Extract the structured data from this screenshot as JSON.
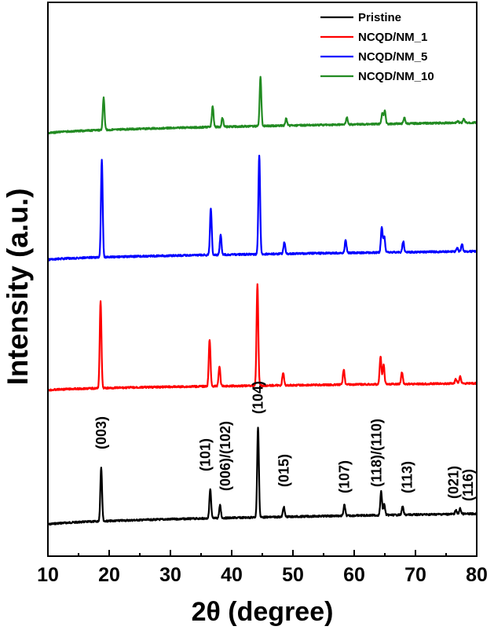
{
  "chart_data": {
    "type": "line",
    "title": "",
    "xlabel": "2θ (degree)",
    "ylabel": "Intensity (a.u.)",
    "xlim": [
      10,
      80
    ],
    "x_ticks": [
      10,
      20,
      30,
      40,
      50,
      60,
      70,
      80
    ],
    "y_ticks_shown": false,
    "legend_position": "top-right",
    "series": [
      {
        "name": "Pristine",
        "color": "#000000",
        "offset": 0,
        "peaks": [
          [
            18.7,
            0.6
          ],
          [
            36.5,
            0.32
          ],
          [
            38.1,
            0.14
          ],
          [
            44.3,
            1.0
          ],
          [
            48.5,
            0.11
          ],
          [
            58.4,
            0.12
          ],
          [
            64.4,
            0.26
          ],
          [
            64.9,
            0.12
          ],
          [
            67.9,
            0.09
          ],
          [
            76.6,
            0.04
          ],
          [
            77.3,
            0.06
          ]
        ]
      },
      {
        "name": "NCQD/NM_1",
        "color": "#ff0000",
        "offset": 1,
        "peaks": [
          [
            18.6,
            0.96
          ],
          [
            36.4,
            0.52
          ],
          [
            38.0,
            0.22
          ],
          [
            44.2,
            1.12
          ],
          [
            48.4,
            0.14
          ],
          [
            58.3,
            0.17
          ],
          [
            64.3,
            0.31
          ],
          [
            64.8,
            0.22
          ],
          [
            67.8,
            0.13
          ],
          [
            76.6,
            0.05
          ],
          [
            77.3,
            0.08
          ]
        ]
      },
      {
        "name": "NCQD/NM_5",
        "color": "#0000ff",
        "offset": 2,
        "peaks": [
          [
            18.8,
            1.08
          ],
          [
            36.6,
            0.52
          ],
          [
            38.2,
            0.22
          ],
          [
            44.5,
            1.1
          ],
          [
            48.6,
            0.13
          ],
          [
            58.6,
            0.14
          ],
          [
            64.5,
            0.28
          ],
          [
            64.9,
            0.18
          ],
          [
            68.0,
            0.12
          ],
          [
            76.8,
            0.04
          ],
          [
            77.6,
            0.08
          ]
        ]
      },
      {
        "name": "NCQD/NM_10",
        "color": "#228b22",
        "offset": 3,
        "peaks": [
          [
            19.1,
            0.36
          ],
          [
            36.9,
            0.23
          ],
          [
            38.5,
            0.1
          ],
          [
            44.7,
            0.54
          ],
          [
            48.9,
            0.08
          ],
          [
            58.8,
            0.08
          ],
          [
            64.6,
            0.13
          ],
          [
            65.0,
            0.15
          ],
          [
            68.2,
            0.07
          ],
          [
            76.9,
            0.02
          ],
          [
            77.9,
            0.04
          ]
        ]
      }
    ],
    "annotations": [
      {
        "text": "(003)",
        "x": 18.7
      },
      {
        "text": "(101)",
        "x": 36.5
      },
      {
        "text": "(006)/(102)",
        "x": 38.1
      },
      {
        "text": "(104)",
        "x": 44.3
      },
      {
        "text": "(015)",
        "x": 48.5
      },
      {
        "text": "(107)",
        "x": 58.4
      },
      {
        "text": "(118)/(110)",
        "x": 64.4
      },
      {
        "text": "(113)",
        "x": 67.9
      },
      {
        "text": "(021)",
        "x": 76.6
      },
      {
        "text": "(116)",
        "x": 77.3
      }
    ]
  }
}
